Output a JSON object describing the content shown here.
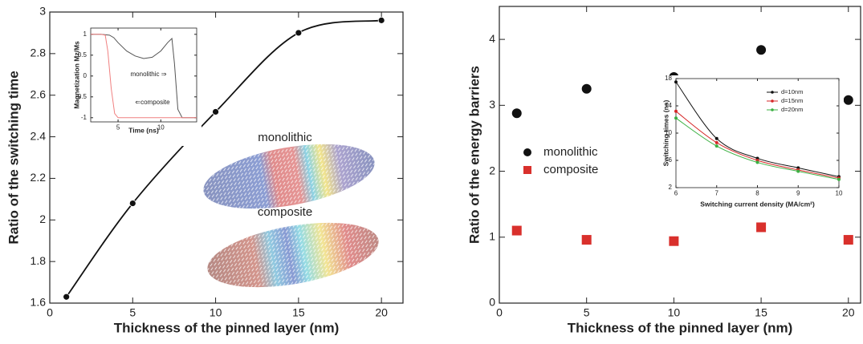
{
  "chart_data": [
    {
      "type": "line",
      "xlabel": "Thickness of the pinned layer (nm)",
      "ylabel": "Ratio of the switching time",
      "x": [
        1,
        5,
        10,
        15,
        20
      ],
      "markers": true,
      "series": [
        {
          "color": "#111111",
          "values": [
            1.63,
            2.08,
            2.52,
            2.9,
            2.96
          ]
        }
      ],
      "xlim": [
        0,
        21.3
      ],
      "ylim": [
        1.6,
        3
      ],
      "xticks": [
        0,
        5,
        10,
        15,
        20
      ],
      "yticks": [
        1.6,
        1.8,
        2,
        2.2,
        2.4,
        2.6,
        2.8,
        3
      ],
      "annotations": [
        "monolithic",
        "composite"
      ]
    },
    {
      "type": "line",
      "xlabel": "Time (ns)",
      "ylabel": "Magnetization Mz/Ms",
      "series": [
        {
          "color": "#555555",
          "x": [
            1.8,
            3,
            4,
            4.5,
            5,
            6,
            7,
            8,
            9,
            10,
            10.8,
            11.3,
            11.6,
            12,
            12.5,
            14.2
          ],
          "values": [
            1,
            1,
            0.98,
            0.92,
            0.8,
            0.6,
            0.48,
            0.42,
            0.45,
            0.6,
            0.8,
            0.9,
            0.3,
            -0.8,
            -1,
            -1
          ]
        },
        {
          "color": "#f08080",
          "x": [
            1.8,
            3,
            3.5,
            3.8,
            4.2,
            4.6,
            5,
            6,
            8,
            10,
            12,
            14.2
          ],
          "values": [
            1,
            1,
            0.98,
            0.6,
            -0.3,
            -0.9,
            -1,
            -1,
            -1,
            -1,
            -1,
            -1
          ]
        }
      ],
      "xlim": [
        1.8,
        14.2
      ],
      "ylim": [
        -1.1,
        1.15
      ],
      "xticks": [
        5,
        10
      ],
      "yticks": [
        1,
        0.5,
        0,
        -0.5,
        -1
      ],
      "annotations": [
        "monolithic ⇒",
        "⇐composite"
      ]
    },
    {
      "type": "scatter",
      "xlabel": "Thickness of the pinned layer (nm)",
      "ylabel": "Ratio of the energy barriers",
      "x": [
        1,
        5,
        10,
        15,
        20
      ],
      "legend": true,
      "series": [
        {
          "name": "monolithic",
          "color": "#111111",
          "marker": "circle",
          "values": [
            2.88,
            3.25,
            3.43,
            3.84,
            3.08
          ]
        },
        {
          "name": "composite",
          "color": "#d9302c",
          "marker": "square",
          "values": [
            1.1,
            0.96,
            0.94,
            1.15,
            0.96
          ]
        }
      ],
      "xlim": [
        0,
        20.7
      ],
      "ylim": [
        0,
        4.5
      ],
      "xticks": [
        0,
        5,
        10,
        15,
        20
      ],
      "yticks": [
        0,
        1,
        2,
        3,
        4
      ]
    },
    {
      "type": "line",
      "xlabel": "Switching current density (MA/cm²)",
      "ylabel": "Switching times (ns)",
      "x": [
        6,
        7,
        8,
        9,
        10
      ],
      "markers": true,
      "legend": true,
      "series": [
        {
          "name": "d=10nm",
          "color": "#111111",
          "values": [
            17.5,
            9.2,
            6.3,
            4.9,
            3.6
          ]
        },
        {
          "name": "d=15nm",
          "color": "#d62728",
          "values": [
            13.2,
            8.6,
            6.0,
            4.6,
            3.4
          ]
        },
        {
          "name": "d=20nm",
          "color": "#3cb043",
          "values": [
            12.2,
            8.1,
            5.7,
            4.4,
            3.2
          ]
        }
      ],
      "xlim": [
        6,
        10
      ],
      "ylim": [
        2,
        18
      ],
      "xticks": [
        6,
        7,
        8,
        9,
        10
      ],
      "yticks": [
        2,
        6,
        10,
        14,
        18
      ]
    }
  ]
}
